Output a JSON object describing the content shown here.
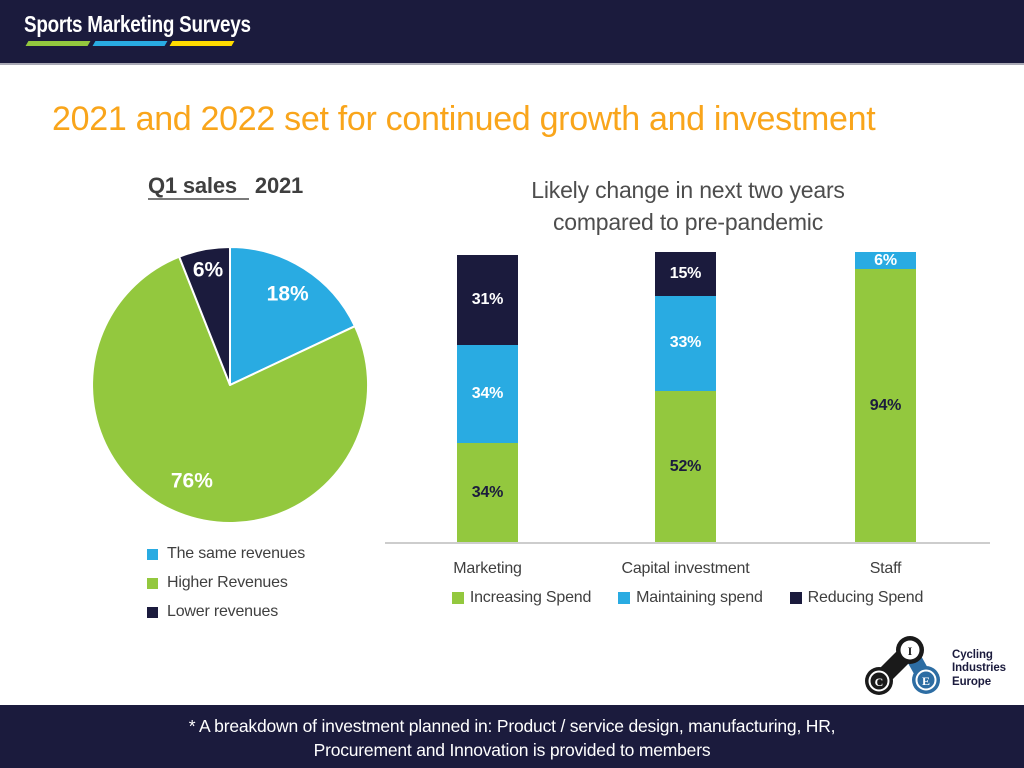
{
  "header": {
    "brand": "Sports Marketing Surveys",
    "underline_colors": [
      "#93c83e",
      "#29abe2",
      "#ffdb00"
    ],
    "underline_widths": [
      62,
      72,
      62
    ]
  },
  "title": "2021 and 2022 set for continued growth and investment",
  "title_color": "#f9a51b",
  "pie_section": {
    "heading_underlined": "Q1 sales",
    "heading_rest": "2021"
  },
  "bar_section": {
    "title_line1": "Likely change in next two years",
    "title_line2": "compared to pre-pandemic"
  },
  "chart_data": [
    {
      "type": "pie",
      "title": "Q1 sales 2021",
      "labels": [
        "The same revenues",
        "Higher Revenues",
        "Lower revenues"
      ],
      "values": [
        18,
        76,
        6
      ],
      "colors": [
        "#29abe2",
        "#93c83e",
        "#1b1b3d"
      ],
      "value_suffix": "%",
      "start_angle": "12 o'clock, clockwise",
      "legend_position": "bottom-left"
    },
    {
      "type": "bar",
      "stacked": true,
      "title": "Likely change in next two years compared to pre-pandemic",
      "categories": [
        "Marketing",
        "Capital investment",
        "Staff"
      ],
      "series": [
        {
          "name": "Increasing Spend",
          "color": "#93c83e",
          "label_color": "#1b1b3d",
          "values": [
            34,
            52,
            94
          ]
        },
        {
          "name": "Maintaining spend",
          "color": "#29abe2",
          "label_color": "#ffffff",
          "values": [
            34,
            33,
            6
          ]
        },
        {
          "name": "Reducing Spend",
          "color": "#1b1b3d",
          "label_color": "#ffffff",
          "values": [
            31,
            15,
            0
          ]
        }
      ],
      "value_suffix": "%",
      "ylim": [
        0,
        100
      ],
      "grid": false,
      "legend_position": "bottom"
    }
  ],
  "cie_logo": {
    "letters": [
      "C",
      "I",
      "E"
    ],
    "text_line1": "Cycling",
    "text_line2": "Industries",
    "text_line3": "Europe"
  },
  "footer": {
    "line1": "* A breakdown of investment planned in: Product / service design, manufacturing, HR,",
    "line2": "Procurement and Innovation is provided to members"
  }
}
